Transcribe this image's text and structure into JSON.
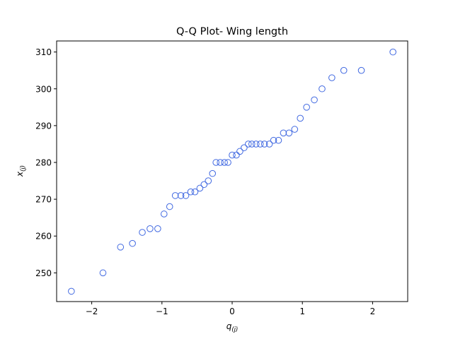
{
  "chart_data": {
    "type": "scatter",
    "title": "Q-Q Plot- Wing length",
    "xlabel_main": "q",
    "xlabel_sub": "(j)",
    "ylabel_main": "x",
    "ylabel_sub": "(j)",
    "xlim": [
      -2.5,
      2.5
    ],
    "ylim": [
      242.2,
      313.0
    ],
    "xticks": [
      -2,
      -1,
      0,
      1,
      2
    ],
    "xtick_labels": [
      "−2",
      "−1",
      "0",
      "1",
      "2"
    ],
    "yticks": [
      250,
      260,
      270,
      280,
      290,
      300,
      310
    ],
    "ytick_labels": [
      "250",
      "260",
      "270",
      "280",
      "290",
      "300",
      "310"
    ],
    "grid": false,
    "marker_color": "#4169e1",
    "series": [
      {
        "x": [
          -2.29,
          -1.84,
          -1.59,
          -1.42,
          -1.28,
          -1.17,
          -1.06,
          -0.97,
          -0.89,
          -0.81,
          -0.73,
          -0.66,
          -0.59,
          -0.53,
          -0.46,
          -0.4,
          -0.34,
          -0.28,
          -0.23,
          -0.17,
          -0.11,
          -0.06,
          0.0,
          0.06,
          0.11,
          0.17,
          0.23,
          0.28,
          0.34,
          0.4,
          0.46,
          0.53,
          0.59,
          0.66,
          0.73,
          0.81,
          0.89,
          0.97,
          1.06,
          1.17,
          1.28,
          1.42,
          1.59,
          1.84,
          2.29
        ],
        "y": [
          245,
          250,
          257,
          258,
          261,
          262,
          262,
          266,
          268,
          271,
          271,
          271,
          272,
          272,
          273,
          274,
          275,
          277,
          280,
          280,
          280,
          280,
          282,
          282,
          283,
          284,
          285,
          285,
          285,
          285,
          285,
          285,
          286,
          286,
          288,
          288,
          289,
          292,
          295,
          297,
          300,
          303,
          305,
          305,
          310
        ]
      }
    ]
  }
}
